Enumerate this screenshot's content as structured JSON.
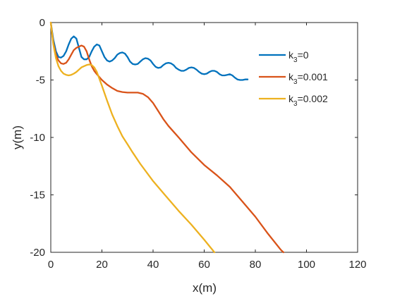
{
  "chart_data": {
    "type": "line",
    "title": "",
    "xlabel": "x(m)",
    "ylabel": "y(m)",
    "xlim": [
      0,
      120
    ],
    "ylim": [
      -20,
      0
    ],
    "xticks": [
      0,
      20,
      40,
      60,
      80,
      100,
      120
    ],
    "yticks": [
      0,
      -5,
      -10,
      -15,
      -20
    ],
    "grid": false,
    "legend_position": "top-right",
    "series": [
      {
        "name": "k3=0",
        "legend_base": "k",
        "legend_sub": "3",
        "legend_rest": "=0",
        "color": "#0072BD",
        "x": [
          0,
          1,
          2,
          3,
          4,
          5,
          6,
          7,
          8,
          9,
          10,
          11,
          12,
          13,
          14,
          15,
          16,
          17,
          18,
          19,
          20,
          21,
          22,
          23,
          24,
          25,
          26,
          27,
          28,
          29,
          30,
          31,
          32,
          33,
          34,
          35,
          36,
          37,
          38,
          39,
          40,
          41,
          42,
          43,
          44,
          45,
          46,
          47,
          48,
          49,
          50,
          51,
          52,
          53,
          54,
          55,
          56,
          57,
          58,
          59,
          60,
          61,
          62,
          63,
          64,
          65,
          66,
          67,
          68,
          69,
          70,
          71,
          72,
          73,
          74,
          75,
          76,
          77
        ],
        "y": [
          0,
          -1.5,
          -2.5,
          -3.0,
          -3.05,
          -2.9,
          -2.5,
          -1.9,
          -1.4,
          -1.2,
          -1.4,
          -2.2,
          -3.0,
          -3.2,
          -3.2,
          -3.0,
          -2.5,
          -2.1,
          -1.9,
          -2.0,
          -2.5,
          -3.0,
          -3.3,
          -3.4,
          -3.3,
          -3.1,
          -2.8,
          -2.65,
          -2.6,
          -2.7,
          -3.0,
          -3.4,
          -3.6,
          -3.65,
          -3.6,
          -3.4,
          -3.2,
          -3.1,
          -3.15,
          -3.3,
          -3.6,
          -3.85,
          -3.95,
          -3.9,
          -3.7,
          -3.55,
          -3.5,
          -3.55,
          -3.7,
          -3.95,
          -4.1,
          -4.2,
          -4.2,
          -4.1,
          -3.95,
          -3.9,
          -3.95,
          -4.1,
          -4.3,
          -4.45,
          -4.5,
          -4.45,
          -4.3,
          -4.2,
          -4.2,
          -4.3,
          -4.5,
          -4.6,
          -4.6,
          -4.55,
          -4.5,
          -4.6,
          -4.8,
          -4.95,
          -5.0,
          -5.0,
          -4.95,
          -4.95
        ]
      },
      {
        "name": "k3=0.001",
        "legend_base": "k",
        "legend_sub": "3",
        "legend_rest": "=0.001",
        "color": "#D95319",
        "x": [
          0,
          1,
          2,
          3,
          4,
          5,
          6,
          7,
          8,
          9,
          10,
          11,
          12,
          13,
          14,
          15,
          16,
          17,
          18,
          20,
          22,
          24,
          26,
          28,
          30,
          32,
          34,
          36,
          38,
          40,
          42,
          44,
          46,
          48,
          50,
          55,
          60,
          65,
          70,
          75,
          80,
          85,
          90,
          91
        ],
        "y": [
          0,
          -1.8,
          -2.8,
          -3.3,
          -3.55,
          -3.6,
          -3.5,
          -3.2,
          -2.8,
          -2.4,
          -2.2,
          -2.1,
          -2.0,
          -2.1,
          -2.5,
          -3.2,
          -3.8,
          -4.2,
          -4.5,
          -5.0,
          -5.4,
          -5.7,
          -5.95,
          -6.05,
          -6.1,
          -6.1,
          -6.1,
          -6.2,
          -6.5,
          -7.0,
          -7.7,
          -8.4,
          -9.0,
          -9.5,
          -10.0,
          -11.3,
          -12.4,
          -13.3,
          -14.3,
          -15.6,
          -16.9,
          -18.4,
          -19.8,
          -20.0
        ]
      },
      {
        "name": "k3=0.002",
        "legend_base": "k",
        "legend_sub": "3",
        "legend_rest": "=0.002",
        "color": "#EDB120",
        "x": [
          0,
          1,
          2,
          3,
          4,
          5,
          6,
          7,
          8,
          9,
          10,
          11,
          12,
          13,
          14,
          15,
          16,
          17,
          18,
          19,
          20,
          22,
          24,
          26,
          28,
          30,
          32,
          35,
          40,
          45,
          50,
          55,
          60,
          64
        ],
        "y": [
          0,
          -1.9,
          -3.1,
          -3.8,
          -4.2,
          -4.45,
          -4.55,
          -4.6,
          -4.55,
          -4.45,
          -4.3,
          -4.1,
          -3.9,
          -3.8,
          -3.7,
          -3.65,
          -3.7,
          -3.9,
          -4.3,
          -4.9,
          -5.5,
          -6.8,
          -8.0,
          -9.0,
          -9.9,
          -10.6,
          -11.3,
          -12.3,
          -13.8,
          -15.1,
          -16.4,
          -17.6,
          -18.9,
          -20.0
        ]
      }
    ]
  }
}
